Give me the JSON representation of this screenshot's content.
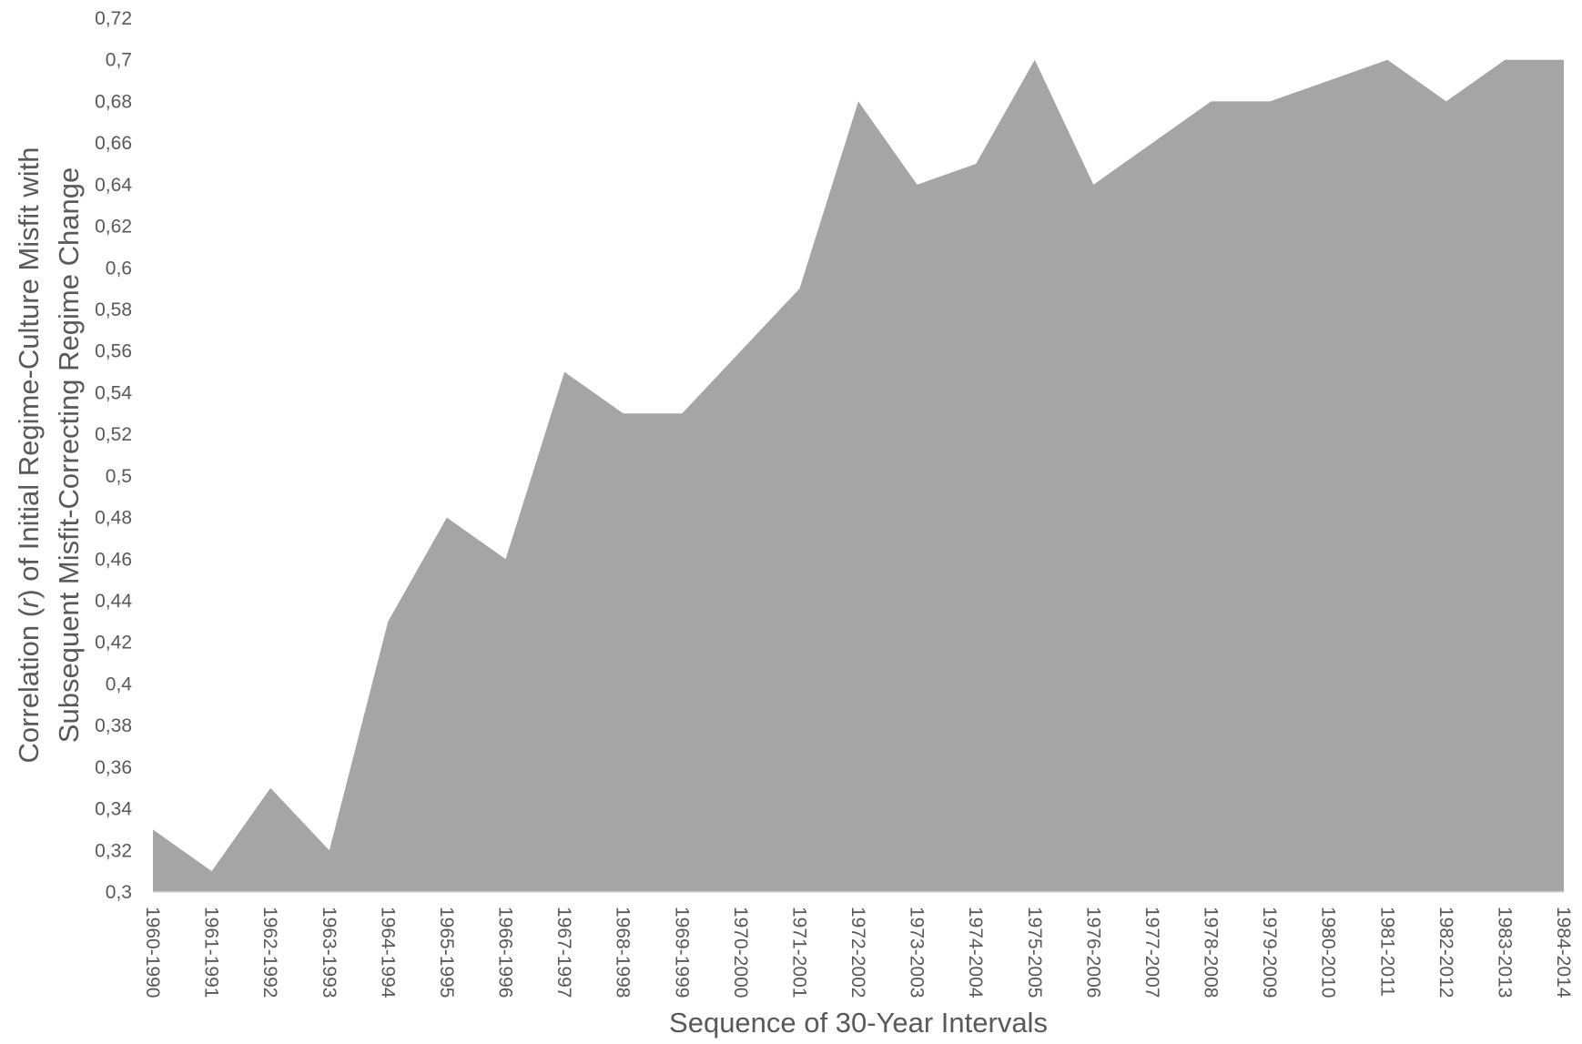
{
  "chart_data": {
    "type": "area",
    "title": "",
    "xlabel": "Sequence of 30-Year  Intervals",
    "ylabel_line1": "Correlation (r) of Initial Regime-Culture Misfit with",
    "ylabel_line2": "Subsequent Misfit-Correcting Regime Change",
    "ylim": [
      0.3,
      0.72
    ],
    "y_tick_step": 0.02,
    "y_tick_labels": [
      "0,3",
      "0,32",
      "0,34",
      "0,36",
      "0,38",
      "0,4",
      "0,42",
      "0,44",
      "0,46",
      "0,48",
      "0,5",
      "0,52",
      "0,54",
      "0,56",
      "0,58",
      "0,6",
      "0,62",
      "0,64",
      "0,66",
      "0,68",
      "0,7",
      "0,72"
    ],
    "grid": false,
    "legend": "none",
    "fill_color": "#a5a5a5",
    "categories": [
      "1960-1990",
      "1961-1991",
      "1962-1992",
      "1963-1993",
      "1964-1994",
      "1965-1995",
      "1966-1996",
      "1967-1997",
      "1968-1998",
      "1969-1999",
      "1970-2000",
      "1971-2001",
      "1972-2002",
      "1973-2003",
      "1974-2004",
      "1975-2005",
      "1976-2006",
      "1977-2007",
      "1978-2008",
      "1979-2009",
      "1980-2010",
      "1981-2011",
      "1982-2012",
      "1983-2013",
      "1984-2014"
    ],
    "values": [
      0.33,
      0.31,
      0.35,
      0.32,
      0.43,
      0.48,
      0.46,
      0.55,
      0.53,
      0.53,
      0.56,
      0.59,
      0.68,
      0.64,
      0.65,
      0.7,
      0.64,
      0.66,
      0.68,
      0.68,
      0.69,
      0.7,
      0.68,
      0.7,
      0.7
    ]
  }
}
